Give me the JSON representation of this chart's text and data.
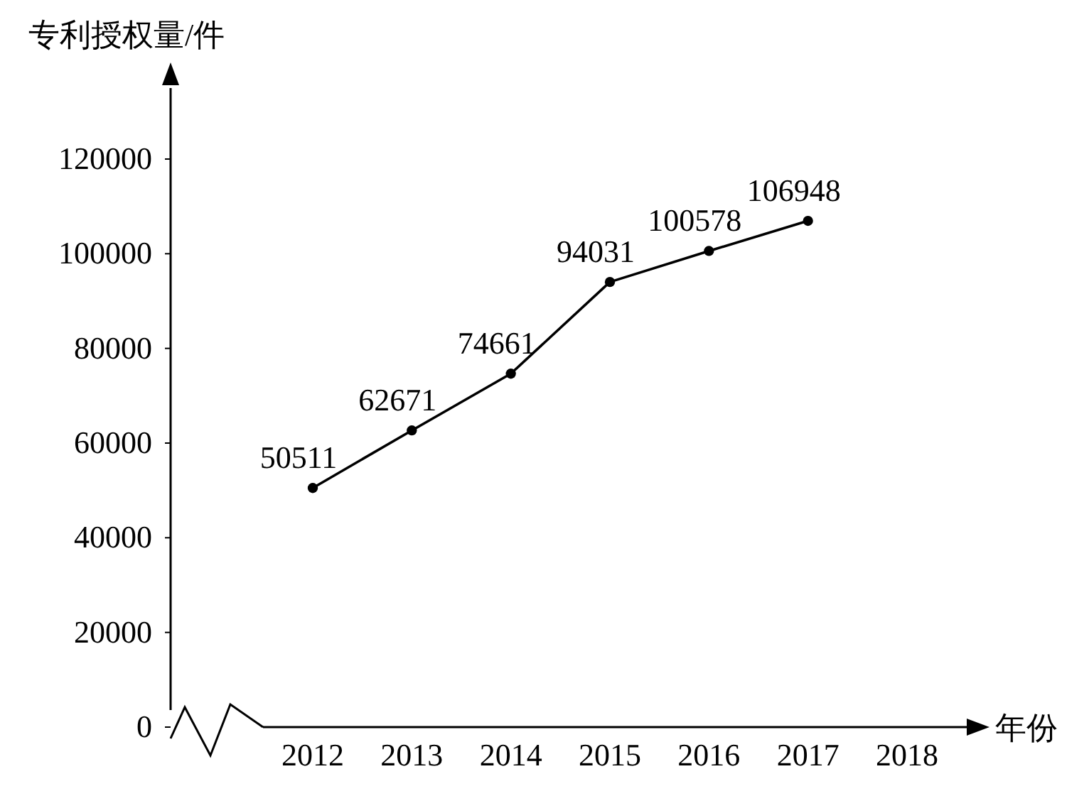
{
  "chart_data": {
    "type": "line",
    "xlabel": "年份",
    "ylabel": "专利授权量/件",
    "categories": [
      "2012",
      "2013",
      "2014",
      "2015",
      "2016",
      "2017",
      "2018"
    ],
    "series": [
      {
        "color": "#000000",
        "values": [
          50511,
          62671,
          74661,
          94031,
          100578,
          106948,
          null
        ]
      }
    ],
    "ylim": [
      0,
      135000
    ],
    "yticks": [
      0,
      20000,
      40000,
      60000,
      80000,
      100000,
      120000
    ],
    "data_labels": true,
    "marker": "circle",
    "line_style": "solid"
  }
}
